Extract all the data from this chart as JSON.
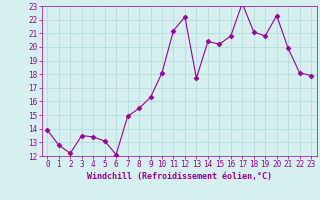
{
  "x": [
    0,
    1,
    2,
    3,
    4,
    5,
    6,
    7,
    8,
    9,
    10,
    11,
    12,
    13,
    14,
    15,
    16,
    17,
    18,
    19,
    20,
    21,
    22,
    23
  ],
  "y": [
    13.9,
    12.8,
    12.2,
    13.5,
    13.4,
    13.1,
    12.1,
    14.9,
    15.5,
    16.3,
    18.1,
    21.2,
    22.2,
    17.7,
    20.4,
    20.2,
    20.8,
    23.2,
    21.1,
    20.8,
    22.3,
    19.9,
    18.1,
    17.9
  ],
  "line_color": "#990099",
  "marker": "D",
  "marker_size": 2.5,
  "bg_color": "#d6f0f0",
  "grid_color": "#b0d8d8",
  "xlabel": "Windchill (Refroidissement éolien,°C)",
  "xlabel_fontsize": 6.0,
  "tick_color": "#990099",
  "tick_fontsize": 5.5,
  "xlim": [
    -0.5,
    23.5
  ],
  "ylim": [
    12,
    23
  ],
  "yticks": [
    12,
    13,
    14,
    15,
    16,
    17,
    18,
    19,
    20,
    21,
    22,
    23
  ],
  "xticks": [
    0,
    1,
    2,
    3,
    4,
    5,
    6,
    7,
    8,
    9,
    10,
    11,
    12,
    13,
    14,
    15,
    16,
    17,
    18,
    19,
    20,
    21,
    22,
    23
  ]
}
